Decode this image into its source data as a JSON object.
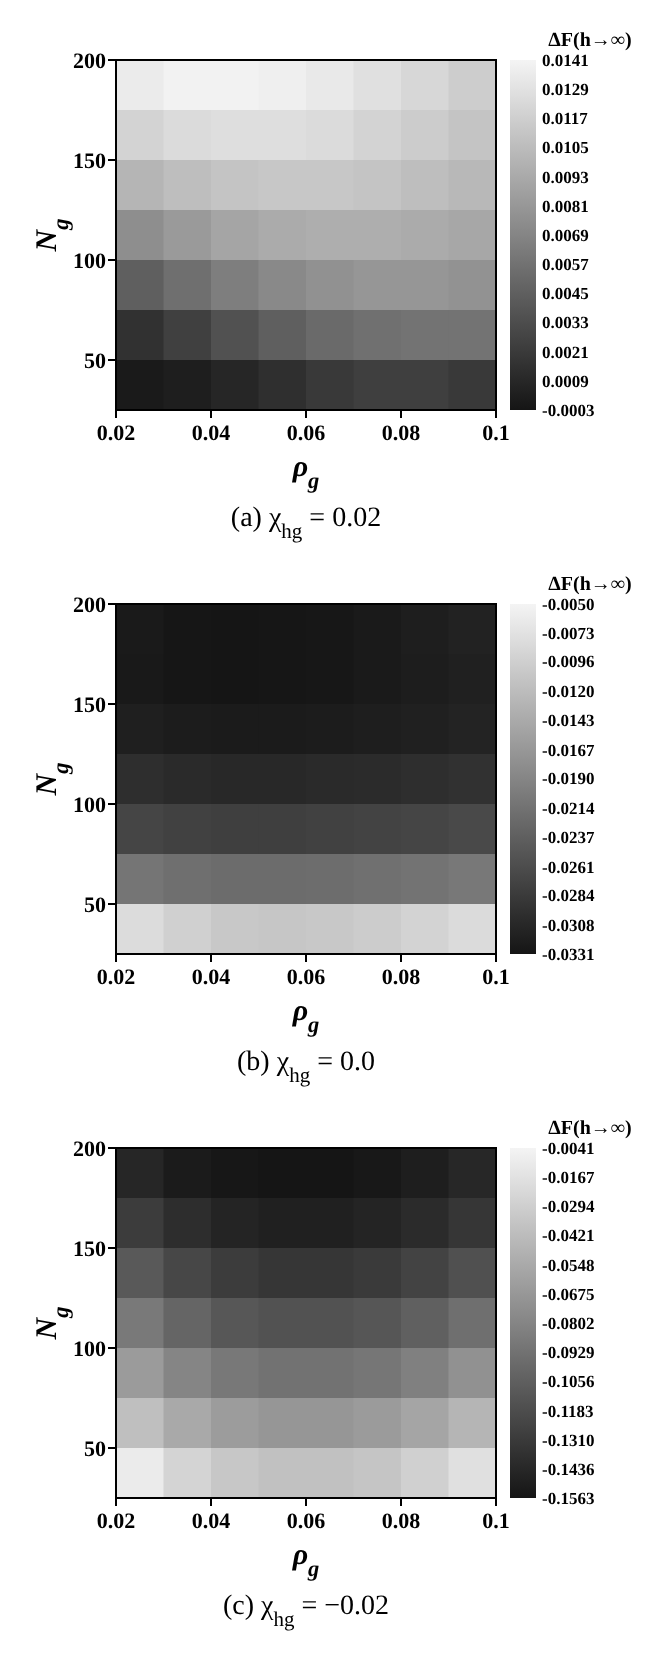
{
  "chart_data": [
    {
      "type": "heatmap",
      "title": "(a)  χ$_{hg}$ = 0.02",
      "xlabel": "ρ$_{g}$",
      "ylabel": "N$_{g}$",
      "clabel": "ΔF(h→∞)",
      "xlim": [
        0.02,
        0.1
      ],
      "ylim": [
        25,
        200
      ],
      "xticks": [
        0.02,
        0.04,
        0.06,
        0.08,
        0.1
      ],
      "yticks": [
        50,
        100,
        150,
        200
      ],
      "clim": [
        -0.0003,
        0.0141
      ],
      "cticks": [
        0.0141,
        0.0129,
        0.0117,
        0.0105,
        0.0093,
        0.0081,
        0.0069,
        0.0057,
        0.0045,
        0.0033,
        0.0021,
        0.0009,
        -0.0003
      ],
      "cells": [
        [
          0.0135,
          0.014,
          0.014,
          0.0138,
          0.0134,
          0.0128,
          0.0122,
          0.0116
        ],
        [
          0.012,
          0.0125,
          0.0127,
          0.0127,
          0.0125,
          0.012,
          0.0115,
          0.011
        ],
        [
          0.01,
          0.0106,
          0.011,
          0.0112,
          0.0112,
          0.011,
          0.0106,
          0.0102
        ],
        [
          0.0075,
          0.0083,
          0.009,
          0.0094,
          0.0096,
          0.0096,
          0.0094,
          0.0091
        ],
        [
          0.0045,
          0.0055,
          0.0065,
          0.0072,
          0.0077,
          0.008,
          0.008,
          0.0078
        ],
        [
          0.0015,
          0.0025,
          0.0036,
          0.0045,
          0.0052,
          0.0056,
          0.0058,
          0.0058
        ],
        [
          0.0,
          0.0003,
          0.0008,
          0.0014,
          0.002,
          0.0024,
          0.0024,
          0.002
        ]
      ]
    },
    {
      "type": "heatmap",
      "title": "(b)  χ$_{hg}$ = 0.0",
      "xlabel": "ρ$_{g}$",
      "ylabel": "N$_{g}$",
      "clabel": "ΔF(h→∞)",
      "xlim": [
        0.02,
        0.1
      ],
      "ylim": [
        25,
        200
      ],
      "xticks": [
        0.02,
        0.04,
        0.06,
        0.08,
        0.1
      ],
      "yticks": [
        50,
        100,
        150,
        200
      ],
      "clim": [
        -0.0331,
        -0.005
      ],
      "cticks": [
        {
          "value": -0.005,
          "label": "-0.0050"
        },
        -0.0073,
        -0.0096,
        {
          "value": -0.012,
          "label": "-0.0120"
        },
        -0.0143,
        -0.0167,
        {
          "value": -0.019,
          "label": "-0.0190"
        },
        -0.0214,
        -0.0237,
        -0.0261,
        -0.0284,
        -0.0308,
        -0.0331
      ],
      "cells": [
        [
          -0.0325,
          -0.033,
          -0.0331,
          -0.033,
          -0.0328,
          -0.0325,
          -0.032,
          -0.0315
        ],
        [
          -0.0326,
          -0.033,
          -0.0331,
          -0.033,
          -0.0328,
          -0.0325,
          -0.0321,
          -0.0317
        ],
        [
          -0.0318,
          -0.0322,
          -0.0324,
          -0.0324,
          -0.0322,
          -0.032,
          -0.0317,
          -0.0313
        ],
        [
          -0.03,
          -0.0305,
          -0.0307,
          -0.0307,
          -0.0305,
          -0.0303,
          -0.03,
          -0.0296
        ],
        [
          -0.027,
          -0.0275,
          -0.0278,
          -0.0278,
          -0.0276,
          -0.0273,
          -0.027,
          -0.0266
        ],
        [
          -0.021,
          -0.0218,
          -0.0222,
          -0.0222,
          -0.022,
          -0.0216,
          -0.0212,
          -0.0206
        ],
        [
          -0.008,
          -0.0095,
          -0.0105,
          -0.0108,
          -0.0106,
          -0.01,
          -0.0092,
          -0.0082
        ]
      ]
    },
    {
      "type": "heatmap",
      "title": "(c)  χ$_{hg}$ = −0.02",
      "xlabel": "ρ$_{g}$",
      "ylabel": "N$_{g}$",
      "clabel": "ΔF(h→∞)",
      "xlim": [
        0.02,
        0.1
      ],
      "ylim": [
        25,
        200
      ],
      "xticks": [
        0.02,
        0.04,
        0.06,
        0.08,
        0.1
      ],
      "yticks": [
        50,
        100,
        150,
        200
      ],
      "clim": [
        -0.1563,
        -0.0041
      ],
      "cticks": [
        -0.0041,
        -0.0167,
        -0.0294,
        -0.0421,
        -0.0548,
        -0.0675,
        -0.0802,
        -0.0929,
        -0.1056,
        -0.1183,
        {
          "value": -0.131,
          "label": "-0.1310"
        },
        -0.1436,
        -0.1563
      ],
      "cells": [
        [
          -0.145,
          -0.152,
          -0.155,
          -0.156,
          -0.156,
          -0.154,
          -0.15,
          -0.144
        ],
        [
          -0.13,
          -0.14,
          -0.146,
          -0.149,
          -0.149,
          -0.146,
          -0.141,
          -0.134
        ],
        [
          -0.11,
          -0.122,
          -0.13,
          -0.134,
          -0.134,
          -0.131,
          -0.125,
          -0.116
        ],
        [
          -0.088,
          -0.102,
          -0.111,
          -0.115,
          -0.115,
          -0.112,
          -0.105,
          -0.095
        ],
        [
          -0.065,
          -0.08,
          -0.089,
          -0.093,
          -0.093,
          -0.09,
          -0.083,
          -0.072
        ],
        [
          -0.04,
          -0.055,
          -0.064,
          -0.068,
          -0.068,
          -0.065,
          -0.058,
          -0.047
        ],
        [
          -0.01,
          -0.026,
          -0.035,
          -0.039,
          -0.039,
          -0.036,
          -0.029,
          -0.018
        ]
      ]
    }
  ]
}
